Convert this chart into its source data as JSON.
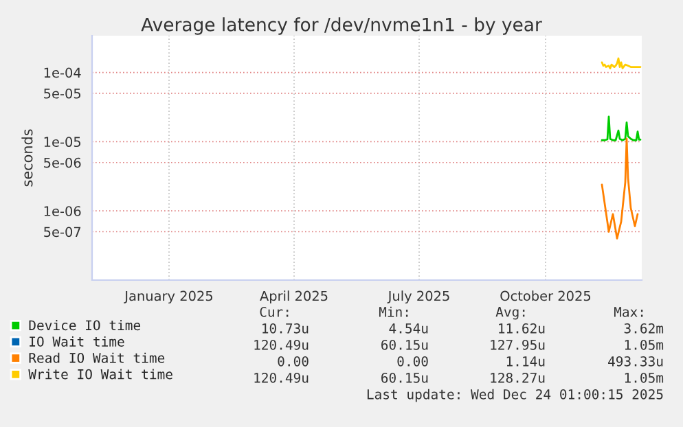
{
  "chart_data": {
    "type": "line",
    "title": "Average latency for /dev/nvme1n1 - by year",
    "ylabel": "seconds",
    "log": "y",
    "ylim": [
      1e-07,
      0.00034
    ],
    "yticks": [
      {
        "value": 5e-07,
        "label": "5e-07"
      },
      {
        "value": 1e-06,
        "label": "1e-06"
      },
      {
        "value": 5e-06,
        "label": "5e-06"
      },
      {
        "value": 1e-05,
        "label": "1e-05"
      },
      {
        "value": 5e-05,
        "label": "5e-05"
      },
      {
        "value": 0.0001,
        "label": "1e-04"
      }
    ],
    "xlim": [
      "2024-11-19",
      "2025-12-24"
    ],
    "xticks": [
      {
        "value": "2025-01-14",
        "label": "January 2025"
      },
      {
        "value": "2025-04-15",
        "label": "April 2025"
      },
      {
        "value": "2025-07-15",
        "label": "July 2025"
      },
      {
        "value": "2025-10-15",
        "label": "October 2025"
      }
    ],
    "grid": true,
    "legend": "bottom",
    "series": [
      {
        "name": "Device IO time",
        "color": "#00cc00",
        "x": [
          "2025-11-25",
          "2025-11-27",
          "2025-11-29",
          "2025-11-30",
          "2025-12-01",
          "2025-12-03",
          "2025-12-05",
          "2025-12-07",
          "2025-12-08",
          "2025-12-10",
          "2025-12-12",
          "2025-12-13",
          "2025-12-14",
          "2025-12-16",
          "2025-12-18",
          "2025-12-20",
          "2025-12-21",
          "2025-12-22",
          "2025-12-23"
        ],
        "values": [
          1.05e-05,
          1.05e-05,
          1.08e-05,
          2.3e-05,
          1.1e-05,
          1.05e-05,
          1.05e-05,
          1.45e-05,
          1.1e-05,
          1.05e-05,
          1.1e-05,
          1.9e-05,
          1.2e-05,
          1.1e-05,
          1.05e-05,
          1.05e-05,
          1.4e-05,
          1.07e-05,
          1.07e-05
        ]
      },
      {
        "name": "IO Wait time",
        "color": "#0066b3"
      },
      {
        "name": "Read IO Wait time",
        "color": "#ff8000",
        "x": [
          "2025-11-25",
          "2025-11-30",
          "2025-12-03",
          "2025-12-06",
          "2025-12-09",
          "2025-12-12",
          "2025-12-13",
          "2025-12-14",
          "2025-12-16",
          "2025-12-19",
          "2025-12-21"
        ],
        "values": [
          2.4e-06,
          5e-07,
          9e-07,
          4e-07,
          7e-07,
          2.6e-06,
          1.1e-05,
          3e-06,
          1.1e-06,
          6e-07,
          9e-07
        ]
      },
      {
        "name": "Write IO Wait time",
        "color": "#ffcc00",
        "x": [
          "2025-11-25",
          "2025-11-26",
          "2025-11-27",
          "2025-11-28",
          "2025-11-30",
          "2025-12-01",
          "2025-12-02",
          "2025-12-04",
          "2025-12-05",
          "2025-12-06",
          "2025-12-07",
          "2025-12-08",
          "2025-12-09",
          "2025-12-10",
          "2025-12-12",
          "2025-12-14",
          "2025-12-16",
          "2025-12-18",
          "2025-12-20",
          "2025-12-22",
          "2025-12-23"
        ],
        "values": [
          0.00014,
          0.000125,
          0.00013,
          0.00012,
          0.000125,
          0.000115,
          0.00013,
          0.00012,
          0.000125,
          0.000135,
          0.00016,
          0.00012,
          0.00014,
          0.000115,
          0.00013,
          0.000125,
          0.00012,
          0.00012,
          0.00012,
          0.00012,
          0.00012
        ]
      }
    ],
    "annotations": [
      "Cur:",
      "Min:",
      "Avg:",
      "Max:",
      "10.73u",
      "4.54u",
      "11.62u",
      "3.62m",
      "120.49u",
      "60.15u",
      "127.95u",
      "1.05m",
      "0.00",
      "0.00",
      "1.14u",
      "493.33u",
      "120.49u",
      "60.15u",
      "128.27u",
      "1.05m",
      "Last update: Wed Dec 24 01:00:15 2025"
    ]
  }
}
